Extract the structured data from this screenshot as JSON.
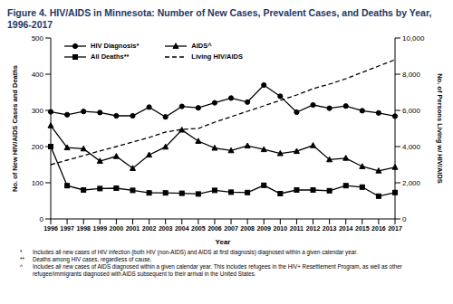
{
  "chart_data": {
    "type": "line",
    "title": "Figure 4. HIV/AIDS in Minnesota: Number of New Cases, Prevalent Cases, and Deaths by Year, 1996-2017",
    "x_label": "Year",
    "y_label": "No. of New HIV/AIDS Cases and Deaths",
    "y2_label": "No. of Persons Living w/ HIV/AIDS",
    "categories": [
      "1996",
      "1997",
      "1998",
      "1999",
      "2000",
      "2001",
      "2002",
      "2003",
      "2004",
      "2005",
      "2006",
      "2007",
      "2008",
      "2009",
      "2010",
      "2011",
      "2012",
      "2013",
      "2014",
      "2015",
      "2016",
      "2017"
    ],
    "series": [
      {
        "name": "HIV Diagnosis*",
        "color": "#000000",
        "marker": "circle",
        "line_style": "solid",
        "values": [
          296,
          288,
          297,
          294,
          285,
          285,
          309,
          282,
          311,
          307,
          321,
          334,
          323,
          370,
          339,
          295,
          315,
          306,
          312,
          299,
          293,
          284
        ]
      },
      {
        "name": "AIDS^",
        "color": "#000000",
        "marker": "triangle",
        "line_style": "solid",
        "values": [
          258,
          197,
          194,
          160,
          173,
          140,
          177,
          199,
          246,
          215,
          196,
          189,
          202,
          192,
          181,
          187,
          203,
          164,
          168,
          145,
          133,
          143
        ]
      },
      {
        "name": "All Deaths**",
        "color": "#000000",
        "marker": "square",
        "line_style": "solid",
        "values": [
          200,
          92,
          80,
          84,
          85,
          79,
          72,
          72,
          71,
          69,
          79,
          74,
          73,
          93,
          70,
          80,
          80,
          78,
          92,
          88,
          63,
          73
        ]
      },
      {
        "name": "Living HIV/AIDS",
        "color": "#000000",
        "marker": "none",
        "line_style": "dashed",
        "axis": "y2",
        "values": [
          3000,
          3250,
          3500,
          3760,
          4000,
          4250,
          4500,
          4800,
          4950,
          5000,
          5350,
          5650,
          5950,
          6250,
          6550,
          6850,
          7200,
          7450,
          7750,
          8100,
          8450,
          8800
        ]
      }
    ],
    "ylim": [
      0,
      500
    ],
    "yticks": [
      0,
      100,
      200,
      300,
      400,
      500
    ],
    "y2lim": [
      0,
      10000
    ],
    "y2ticks": [
      0,
      {
        "value": 2000,
        "label": "2,000"
      },
      {
        "value": 4000,
        "label": "4,000"
      },
      {
        "value": 6000,
        "label": "6,000"
      },
      {
        "value": 8000,
        "label": "8,000"
      },
      {
        "value": 10000,
        "label": "10,000"
      }
    ],
    "grid": false,
    "legend": "upper left",
    "notes": [
      {
        "symbol": "*",
        "text": "Includes all new cases of HIV infection (both HIV (non-AIDS) and AIDS at first diagnosis) diagnosed within a given calendar year."
      },
      {
        "symbol": "**",
        "text": "Deaths among HIV cases, regardless of cause."
      },
      {
        "symbol": "^",
        "text": "Includes all new cases of AIDS diagnosed within a given calendar year. This includes refugees in the HIV+ Resettlement Program, as well as other refugee/immigrants diagnosed with AIDS subsequent to their arrival in the United States."
      }
    ]
  }
}
